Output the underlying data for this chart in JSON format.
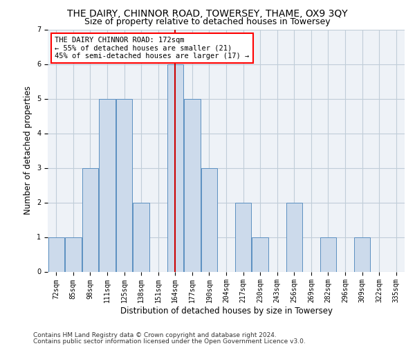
{
  "title": "THE DAIRY, CHINNOR ROAD, TOWERSEY, THAME, OX9 3QY",
  "subtitle": "Size of property relative to detached houses in Towersey",
  "xlabel": "Distribution of detached houses by size in Towersey",
  "ylabel": "Number of detached properties",
  "bar_color": "#ccdaeb",
  "bar_edge_color": "#5a8fc0",
  "grid_color": "#c0cdd8",
  "background_color": "#eef2f7",
  "categories": [
    "72sqm",
    "85sqm",
    "98sqm",
    "111sqm",
    "125sqm",
    "138sqm",
    "151sqm",
    "164sqm",
    "177sqm",
    "190sqm",
    "204sqm",
    "217sqm",
    "230sqm",
    "243sqm",
    "256sqm",
    "269sqm",
    "282sqm",
    "296sqm",
    "309sqm",
    "322sqm",
    "335sqm"
  ],
  "values": [
    1,
    1,
    3,
    5,
    5,
    2,
    0,
    6,
    5,
    3,
    0,
    2,
    1,
    0,
    2,
    0,
    1,
    0,
    1,
    0,
    0
  ],
  "ylim": [
    0,
    7
  ],
  "yticks": [
    0,
    1,
    2,
    3,
    4,
    5,
    6,
    7
  ],
  "vline_index": 7,
  "annotation_line1": "THE DAIRY CHINNOR ROAD: 172sqm",
  "annotation_line2": "← 55% of detached houses are smaller (21)",
  "annotation_line3": "45% of semi-detached houses are larger (17) →",
  "annotation_box_color": "white",
  "annotation_box_edge_color": "red",
  "vline_color": "#cc0000",
  "footer1": "Contains HM Land Registry data © Crown copyright and database right 2024.",
  "footer2": "Contains public sector information licensed under the Open Government Licence v3.0.",
  "title_fontsize": 10,
  "subtitle_fontsize": 9,
  "tick_fontsize": 7,
  "ylabel_fontsize": 8.5,
  "xlabel_fontsize": 8.5,
  "annotation_fontsize": 7.5,
  "footer_fontsize": 6.5
}
